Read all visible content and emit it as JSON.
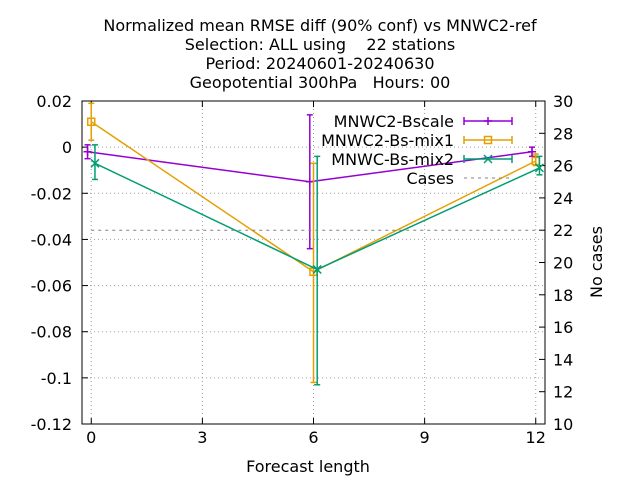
{
  "chart_data": {
    "type": "line",
    "title": [
      "Normalized mean RMSE diff (90% conf) vs MNWC2-ref",
      "Selection: ALL using    22 stations",
      "Period: 20240601-20240630",
      "Geopotential 300hPa   Hours: 00"
    ],
    "xlabel": "Forecast length",
    "ylabel": "",
    "y2label": "No cases",
    "xlim": [
      -0.25,
      12.25
    ],
    "ylim": [
      -0.12,
      0.02
    ],
    "y2lim": [
      10,
      30
    ],
    "xticks": [
      0,
      3,
      6,
      9,
      12
    ],
    "yticks": [
      0.02,
      0,
      -0.02,
      -0.04,
      -0.06,
      -0.08,
      -0.1,
      -0.12
    ],
    "ytick_labels": [
      "0.02",
      "0",
      "-0.02",
      "-0.04",
      "-0.06",
      "-0.08",
      "-0.1",
      "-0.12"
    ],
    "y2ticks": [
      10,
      12,
      14,
      16,
      18,
      20,
      22,
      24,
      26,
      28,
      30
    ],
    "grid": true,
    "legend_position": "top-right",
    "series": [
      {
        "name": "MNWC2-Bscale",
        "color": "#9400d3",
        "marker": "plus",
        "x": [
          -0.1,
          5.9,
          11.9
        ],
        "y": [
          -0.002,
          -0.015,
          -0.002
        ],
        "err_low": [
          -0.005,
          -0.044,
          -0.004
        ],
        "err_high": [
          0.001,
          0.014,
          0.0
        ]
      },
      {
        "name": "MNWC2-Bs-mix1",
        "color": "#e69f00",
        "marker": "open-square",
        "x": [
          0.0,
          6.0,
          12.0
        ],
        "y": [
          0.011,
          -0.054,
          -0.006
        ],
        "err_low": [
          0.003,
          -0.102,
          -0.008
        ],
        "err_high": [
          0.019,
          -0.007,
          -0.003
        ]
      },
      {
        "name": "MNWC-Bs-mix2",
        "color": "#009e73",
        "marker": "x",
        "x": [
          0.1,
          6.1,
          12.1
        ],
        "y": [
          -0.007,
          -0.053,
          -0.009
        ],
        "err_low": [
          -0.014,
          -0.103,
          -0.012
        ],
        "err_high": [
          0.001,
          -0.004,
          -0.004
        ]
      },
      {
        "name": "Cases",
        "color": "#808080",
        "axis": "y2",
        "style": "dashed",
        "x": [
          0,
          6,
          12
        ],
        "y": [
          22,
          22,
          22
        ]
      }
    ]
  }
}
